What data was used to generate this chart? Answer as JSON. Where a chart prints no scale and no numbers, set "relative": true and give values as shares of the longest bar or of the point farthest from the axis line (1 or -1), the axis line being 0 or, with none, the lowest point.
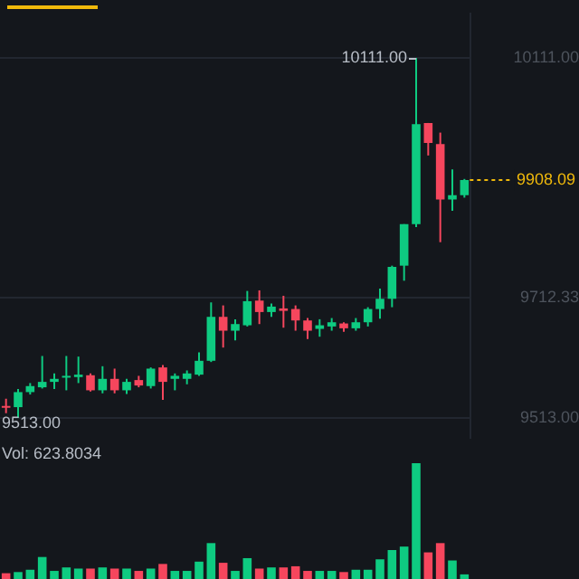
{
  "chart_data": [
    {
      "type": "candlestick",
      "categories": [
        null,
        null,
        null,
        null,
        null,
        null,
        null,
        null,
        null,
        null,
        null,
        null,
        null,
        null,
        null,
        null,
        null,
        null,
        null,
        null,
        null,
        null,
        null,
        null,
        null,
        null,
        null,
        null,
        null,
        null,
        null,
        null,
        null,
        null,
        null,
        null,
        null,
        null,
        null
      ],
      "ohlc": [
        [
          9533,
          9545,
          9521,
          9530
        ],
        [
          9531,
          9561,
          9513,
          9556
        ],
        [
          9556,
          9571,
          9552,
          9566
        ],
        [
          9564,
          9616,
          9562,
          9573
        ],
        [
          9573,
          9587,
          9561,
          9578
        ],
        [
          9580,
          9616,
          9559,
          9583
        ],
        [
          9581,
          9615,
          9571,
          9585
        ],
        [
          9584,
          9587,
          9557,
          9559
        ],
        [
          9559,
          9599,
          9554,
          9578
        ],
        [
          9578,
          9595,
          9554,
          9559
        ],
        [
          9559,
          9578,
          9553,
          9573
        ],
        [
          9576,
          9583,
          9564,
          9567
        ],
        [
          9566,
          9597,
          9562,
          9595
        ],
        [
          9597,
          9601,
          9543,
          9573
        ],
        [
          9578,
          9587,
          9559,
          9583
        ],
        [
          9578,
          9592,
          9569,
          9587
        ],
        [
          9585,
          9622,
          9583,
          9608
        ],
        [
          9608,
          9705,
          9606,
          9681
        ],
        [
          9681,
          9700,
          9630,
          9658
        ],
        [
          9658,
          9677,
          9642,
          9669
        ],
        [
          9667,
          9724,
          9665,
          9707
        ],
        [
          9708,
          9725,
          9669,
          9689
        ],
        [
          9689,
          9703,
          9681,
          9698
        ],
        [
          9695,
          9716,
          9663,
          9691
        ],
        [
          9694,
          9700,
          9658,
          9675
        ],
        [
          9675,
          9679,
          9644,
          9658
        ],
        [
          9661,
          9677,
          9648,
          9667
        ],
        [
          9665,
          9679,
          9658,
          9672
        ],
        [
          9670,
          9672,
          9656,
          9662
        ],
        [
          9662,
          9679,
          9658,
          9672
        ],
        [
          9672,
          9697,
          9665,
          9694
        ],
        [
          9694,
          9728,
          9678,
          9711
        ],
        [
          9711,
          9766,
          9697,
          9764
        ],
        [
          9766,
          9835,
          9741,
          9835
        ],
        [
          9835,
          10111,
          9830,
          10001
        ],
        [
          10003,
          10003,
          9949,
          9970
        ],
        [
          9968,
          9987,
          9805,
          9876
        ],
        [
          9876,
          9926,
          9857,
          9883
        ],
        [
          9883,
          9910,
          9879,
          9908.09
        ]
      ],
      "colors": [
        "#f6465d",
        "#0ecb81",
        "#0ecb81",
        "#0ecb81",
        "#0ecb81",
        "#0ecb81",
        "#0ecb81",
        "#f6465d",
        "#0ecb81",
        "#f6465d",
        "#0ecb81",
        "#f6465d",
        "#0ecb81",
        "#f6465d",
        "#0ecb81",
        "#0ecb81",
        "#0ecb81",
        "#0ecb81",
        "#f6465d",
        "#0ecb81",
        "#0ecb81",
        "#f6465d",
        "#0ecb81",
        "#f6465d",
        "#f6465d",
        "#f6465d",
        "#0ecb81",
        "#0ecb81",
        "#f6465d",
        "#0ecb81",
        "#0ecb81",
        "#0ecb81",
        "#0ecb81",
        "#0ecb81",
        "#0ecb81",
        "#f6465d",
        "#f6465d",
        "#0ecb81",
        "#0ecb81"
      ],
      "ylim": [
        9480,
        10185
      ],
      "yticks": [
        {
          "value": 10111,
          "label": "10111.00"
        },
        {
          "value": 9712.33,
          "label": "9712.33"
        },
        {
          "value": 9513,
          "label": "9513.00"
        }
      ],
      "ref_lines": [
        {
          "axis": "y",
          "value": 9908.09,
          "label": "9908.09",
          "color": "#f0b90b",
          "line_style": "dotted"
        }
      ],
      "annotations": [
        "10111.00",
        "9513.00"
      ],
      "grid": "y",
      "legend": false,
      "tick_labels": "y"
    },
    {
      "type": "bar",
      "relative": true,
      "categories": [
        null,
        null,
        null,
        null,
        null,
        null,
        null,
        null,
        null,
        null,
        null,
        null,
        null,
        null,
        null,
        null,
        null,
        null,
        null,
        null,
        null,
        null,
        null,
        null,
        null,
        null,
        null,
        null,
        null,
        null,
        null,
        null,
        null,
        null,
        null,
        null,
        null,
        null,
        null
      ],
      "values": [
        0.05,
        0.06,
        0.08,
        0.19,
        0.07,
        0.1,
        0.09,
        0.09,
        0.1,
        0.09,
        0.09,
        0.07,
        0.09,
        0.13,
        0.07,
        0.07,
        0.15,
        0.31,
        0.14,
        0.07,
        0.18,
        0.09,
        0.1,
        0.1,
        0.11,
        0.07,
        0.07,
        0.07,
        0.06,
        0.08,
        0.08,
        0.17,
        0.25,
        0.28,
        1,
        0.23,
        0.31,
        0.16,
        0.04
      ],
      "colors": [
        "#f6465d",
        "#0ecb81",
        "#0ecb81",
        "#0ecb81",
        "#0ecb81",
        "#0ecb81",
        "#0ecb81",
        "#f6465d",
        "#0ecb81",
        "#f6465d",
        "#0ecb81",
        "#f6465d",
        "#0ecb81",
        "#f6465d",
        "#0ecb81",
        "#0ecb81",
        "#0ecb81",
        "#0ecb81",
        "#f6465d",
        "#0ecb81",
        "#0ecb81",
        "#f6465d",
        "#0ecb81",
        "#f6465d",
        "#f6465d",
        "#f6465d",
        "#0ecb81",
        "#0ecb81",
        "#f6465d",
        "#0ecb81",
        "#0ecb81",
        "#0ecb81",
        "#0ecb81",
        "#0ecb81",
        "#0ecb81",
        "#f6465d",
        "#f6465d",
        "#0ecb81",
        "#0ecb81"
      ],
      "annotations": [
        "Vol: 623.8034"
      ],
      "legend": false,
      "tick_labels": false
    }
  ]
}
